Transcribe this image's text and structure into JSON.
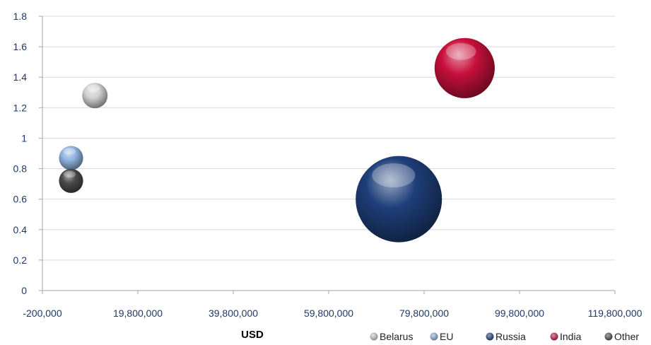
{
  "chart_data": {
    "type": "scatter",
    "subtype": "bubble",
    "title": "",
    "xlabel": "USD",
    "ylabel": "",
    "xlim": [
      -200000,
      119800000
    ],
    "ylim": [
      0,
      1.8
    ],
    "x_ticks": [
      "-200,000",
      "19,800,000",
      "39,800,000",
      "59,800,000",
      "79,800,000",
      "99,800,000",
      "119,800,000"
    ],
    "y_ticks": [
      "0",
      "0.2",
      "0.4",
      "0.6",
      "0.8",
      "1",
      "1.2",
      "1.4",
      "1.6",
      "1.8"
    ],
    "grid": "horizontal",
    "legend_position": "bottom-right",
    "series": [
      {
        "name": "Belarus",
        "x": 10800000,
        "y": 1.28,
        "size": 1.0,
        "color": "#d0d0d0"
      },
      {
        "name": "EU",
        "x": 5800000,
        "y": 0.87,
        "size": 0.9,
        "color": "#8fb3e0"
      },
      {
        "name": "Russia",
        "x": 74500000,
        "y": 0.6,
        "size": 11.5,
        "color": "#1f3f7a"
      },
      {
        "name": "India",
        "x": 88300000,
        "y": 1.46,
        "size": 5.6,
        "color": "#c8103c"
      },
      {
        "name": "Other",
        "x": 5800000,
        "y": 0.72,
        "size": 0.9,
        "color": "#4a4a4a"
      }
    ]
  }
}
